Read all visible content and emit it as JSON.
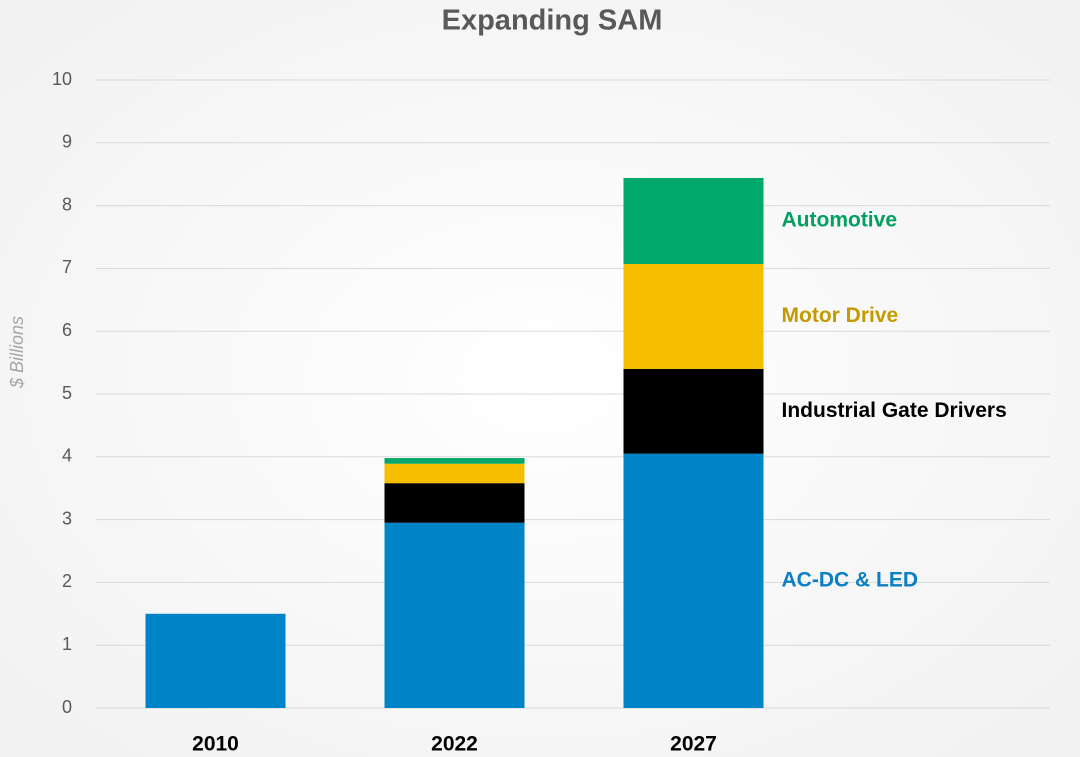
{
  "chart_data": {
    "type": "stacked_bar",
    "title": "Expanding SAM",
    "y_label": "$ Billions",
    "categories": [
      "2010",
      "2022",
      "2027"
    ],
    "series": [
      {
        "name": "AC-DC & LED",
        "color": "#0084c8",
        "label_color": "#0a7fc2",
        "values": [
          1.5,
          2.95,
          4.05
        ]
      },
      {
        "name": "Industrial Gate Drivers",
        "color": "#000000",
        "label_color": "#000000",
        "values": [
          0,
          0.63,
          1.35
        ]
      },
      {
        "name": "Motor Drive",
        "color": "#f5bf00",
        "label_color": "#c59a00",
        "values": [
          0,
          0.31,
          1.67
        ]
      },
      {
        "name": "Automotive",
        "color": "#00a86b",
        "label_color": "#00a060",
        "values": [
          0,
          0.09,
          1.37
        ]
      }
    ],
    "ylim": [
      0,
      10
    ],
    "yticks": [
      0,
      1,
      2,
      3,
      4,
      5,
      6,
      7,
      8,
      9,
      10
    ],
    "grid": true
  }
}
